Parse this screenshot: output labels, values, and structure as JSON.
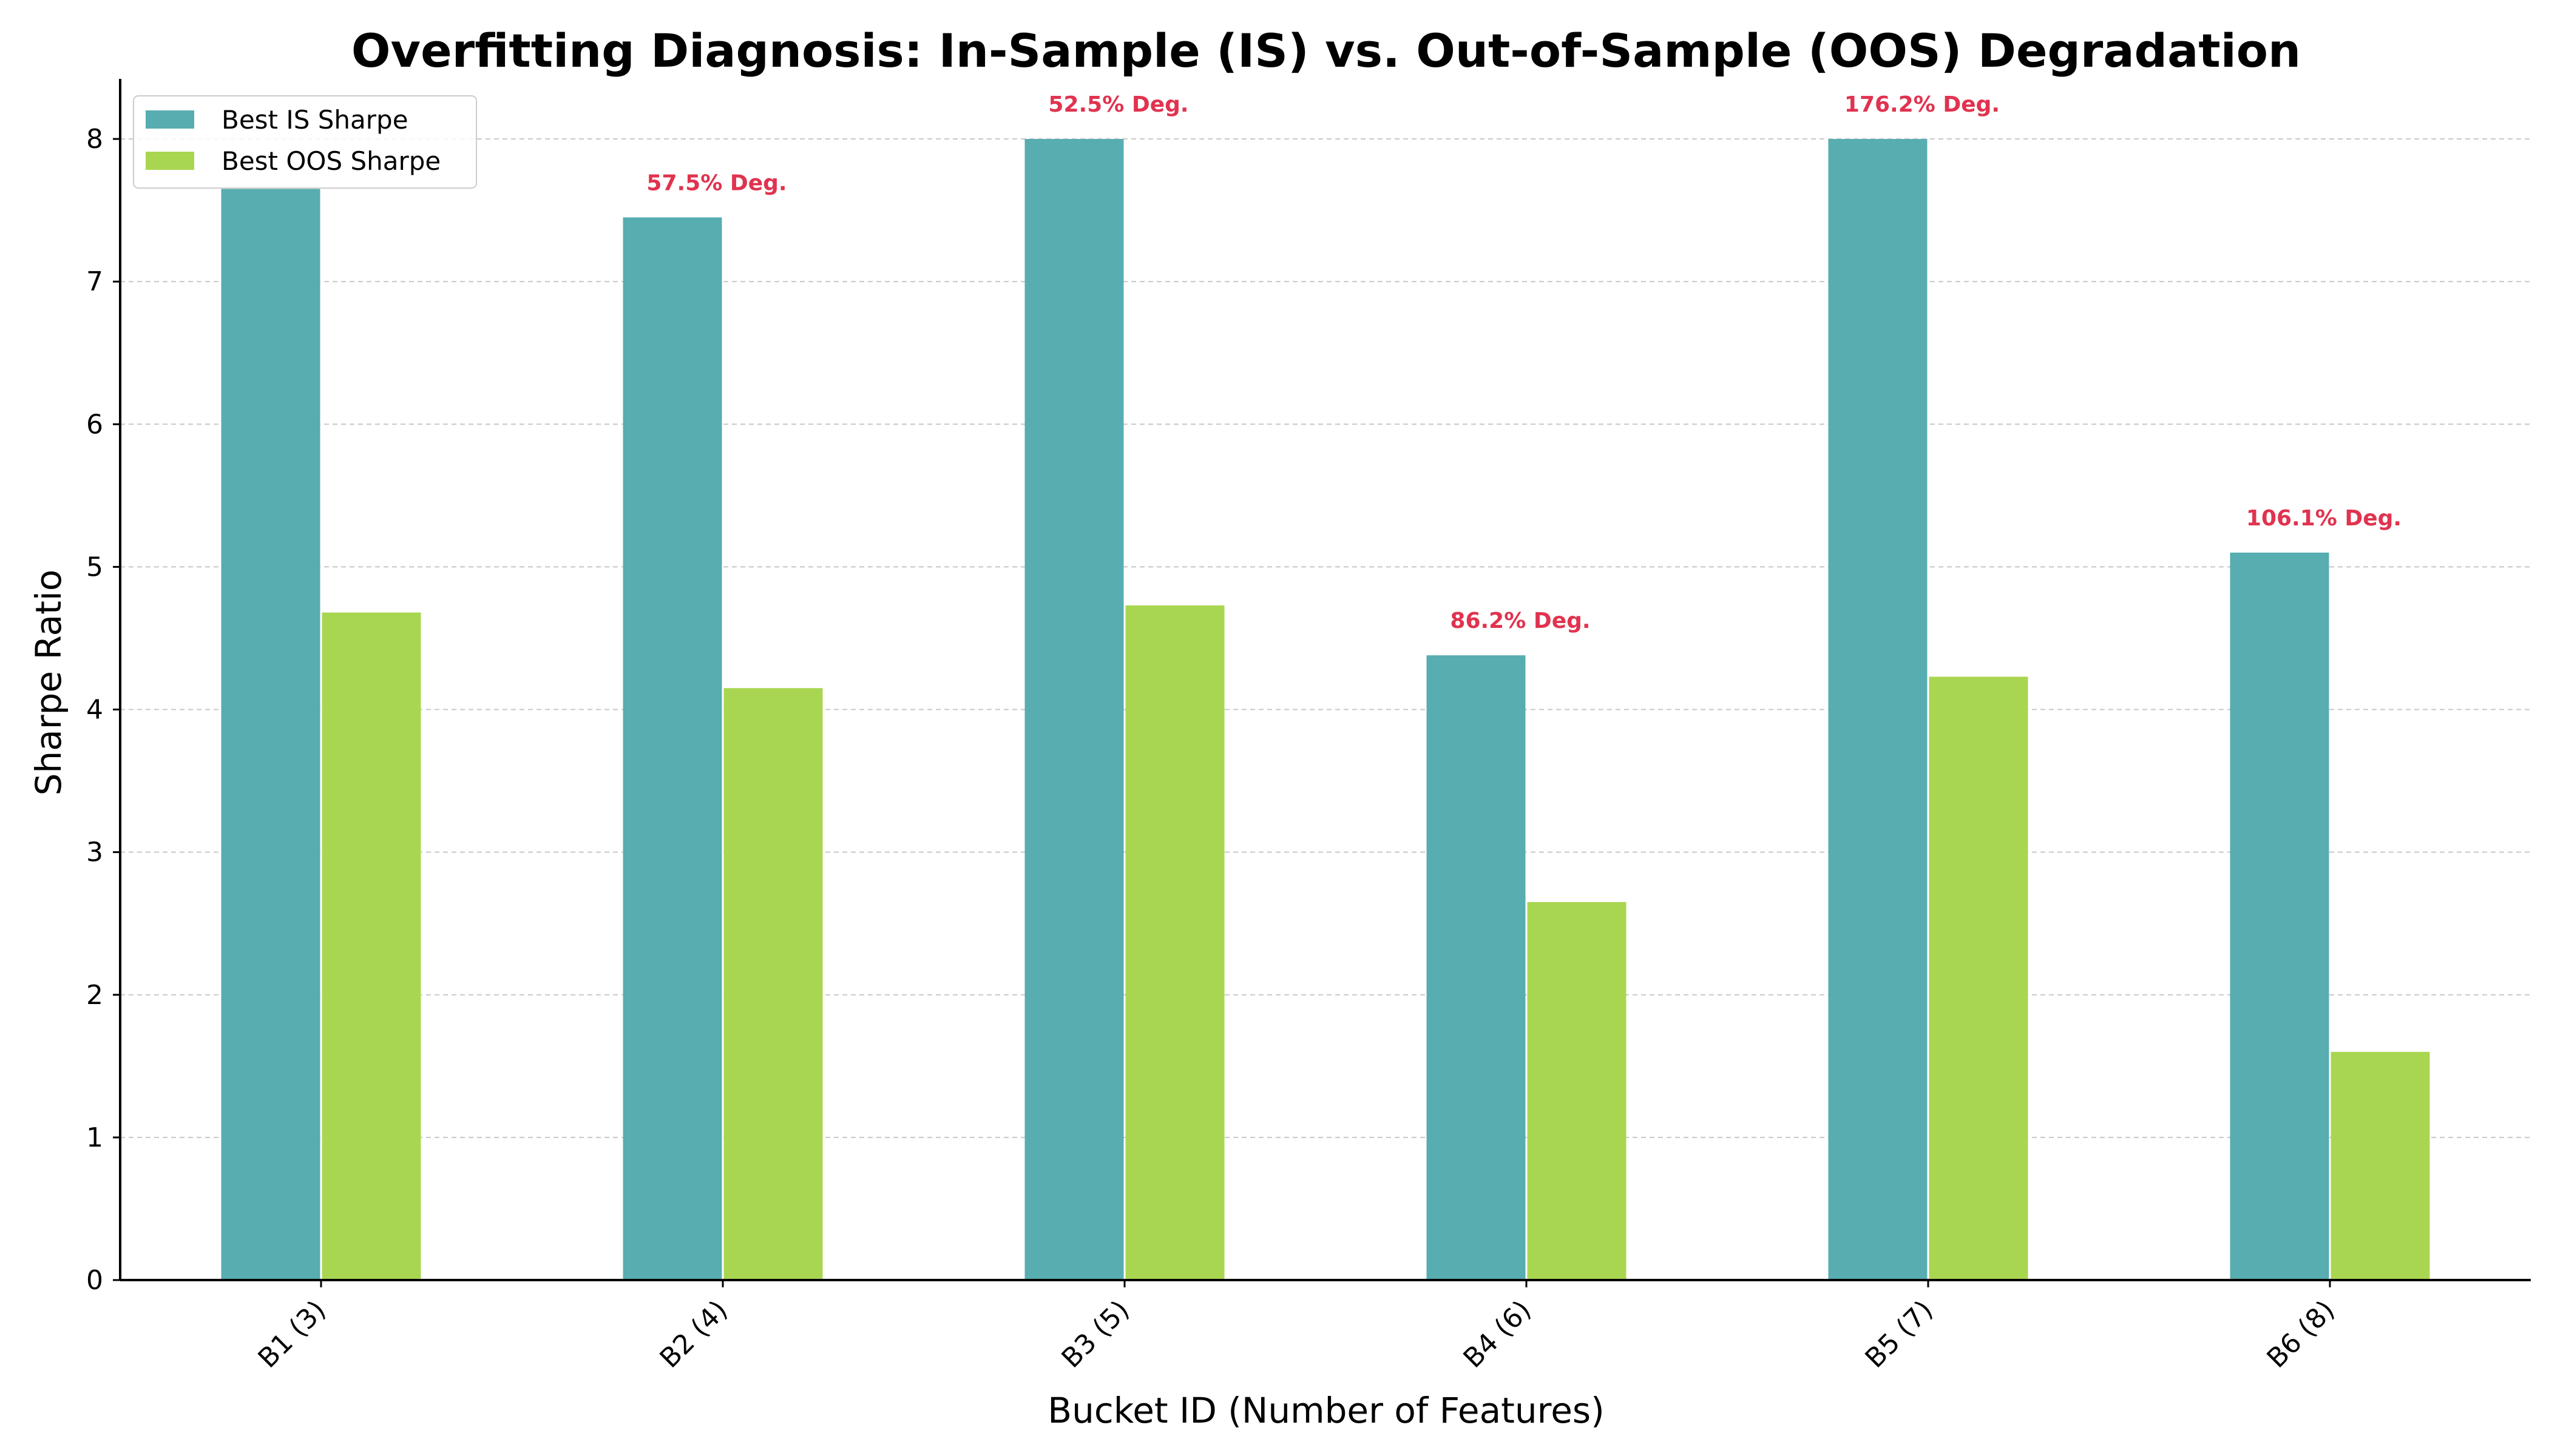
{
  "chart_data": {
    "type": "bar",
    "title": "Overfitting Diagnosis: In-Sample (IS) vs. Out-of-Sample (OOS) Degradation",
    "xlabel": "Bucket ID (Number of Features)",
    "ylabel": "Sharpe Ratio",
    "categories": [
      "B1 (3)",
      "B2 (4)",
      "B3 (5)",
      "B4 (6)",
      "B5 (7)",
      "B6 (8)"
    ],
    "series": [
      {
        "name": "Best IS Sharpe",
        "color": "#57adb0",
        "values": [
          7.65,
          7.45,
          8.0,
          4.38,
          8.0,
          5.1
        ]
      },
      {
        "name": "Best OOS Sharpe",
        "color": "#a9d651",
        "values": [
          4.68,
          4.15,
          4.73,
          2.65,
          4.23,
          1.6
        ]
      }
    ],
    "annotations": [
      "",
      "57.5% Deg.",
      "52.5% Deg.",
      "86.2% Deg.",
      "176.2% Deg.",
      "106.1% Deg."
    ],
    "annotation_color": "#e0334f",
    "ylim": [
      0,
      8.4
    ],
    "yticks": [
      0,
      1,
      2,
      3,
      4,
      5,
      6,
      7,
      8
    ],
    "grid": "y-dashed",
    "legend_position": "top-left"
  }
}
